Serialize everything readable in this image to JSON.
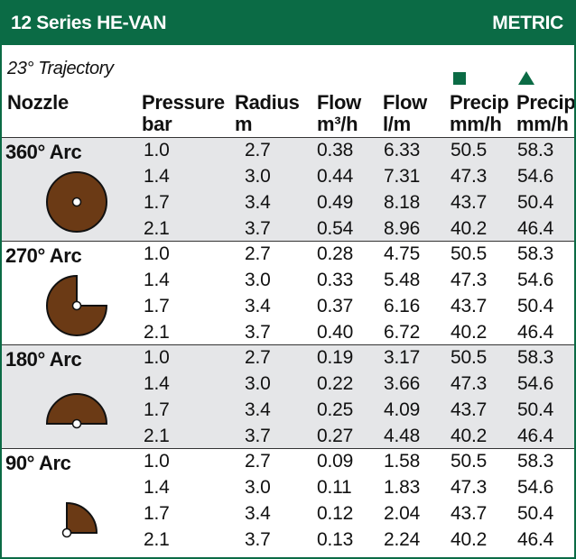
{
  "header": {
    "title": "12 Series HE-VAN",
    "units": "METRIC"
  },
  "subtitle": "23° Trajectory",
  "columns": {
    "nozzle": "Nozzle",
    "pressure": [
      "Pressure",
      "bar"
    ],
    "radius": [
      "Radius",
      "m"
    ],
    "flow_m3h": [
      "Flow",
      "m³/h"
    ],
    "flow_lm": [
      "Flow",
      "l/m"
    ],
    "precip_square": [
      "Precip",
      "mm/h"
    ],
    "precip_triangle": [
      "Precip",
      "mm/h"
    ]
  },
  "colors": {
    "brand_green": "#0b6b45",
    "arc_brown": "#6b3a15",
    "row_shade": "#e5e6e8"
  },
  "groups": [
    {
      "label": "360° Arc",
      "arc_degrees": 360,
      "shaded": true,
      "rows": [
        [
          "1.0",
          "2.7",
          "0.38",
          "6.33",
          "50.5",
          "58.3"
        ],
        [
          "1.4",
          "3.0",
          "0.44",
          "7.31",
          "47.3",
          "54.6"
        ],
        [
          "1.7",
          "3.4",
          "0.49",
          "8.18",
          "43.7",
          "50.4"
        ],
        [
          "2.1",
          "3.7",
          "0.54",
          "8.96",
          "40.2",
          "46.4"
        ]
      ]
    },
    {
      "label": "270° Arc",
      "arc_degrees": 270,
      "shaded": false,
      "rows": [
        [
          "1.0",
          "2.7",
          "0.28",
          "4.75",
          "50.5",
          "58.3"
        ],
        [
          "1.4",
          "3.0",
          "0.33",
          "5.48",
          "47.3",
          "54.6"
        ],
        [
          "1.7",
          "3.4",
          "0.37",
          "6.16",
          "43.7",
          "50.4"
        ],
        [
          "2.1",
          "3.7",
          "0.40",
          "6.72",
          "40.2",
          "46.4"
        ]
      ]
    },
    {
      "label": "180° Arc",
      "arc_degrees": 180,
      "shaded": true,
      "rows": [
        [
          "1.0",
          "2.7",
          "0.19",
          "3.17",
          "50.5",
          "58.3"
        ],
        [
          "1.4",
          "3.0",
          "0.22",
          "3.66",
          "47.3",
          "54.6"
        ],
        [
          "1.7",
          "3.4",
          "0.25",
          "4.09",
          "43.7",
          "50.4"
        ],
        [
          "2.1",
          "3.7",
          "0.27",
          "4.48",
          "40.2",
          "46.4"
        ]
      ]
    },
    {
      "label": "90° Arc",
      "arc_degrees": 90,
      "shaded": false,
      "rows": [
        [
          "1.0",
          "2.7",
          "0.09",
          "1.58",
          "50.5",
          "58.3"
        ],
        [
          "1.4",
          "3.0",
          "0.11",
          "1.83",
          "47.3",
          "54.6"
        ],
        [
          "1.7",
          "3.4",
          "0.12",
          "2.04",
          "43.7",
          "50.4"
        ],
        [
          "2.1",
          "3.7",
          "0.13",
          "2.24",
          "40.2",
          "46.4"
        ]
      ]
    }
  ]
}
